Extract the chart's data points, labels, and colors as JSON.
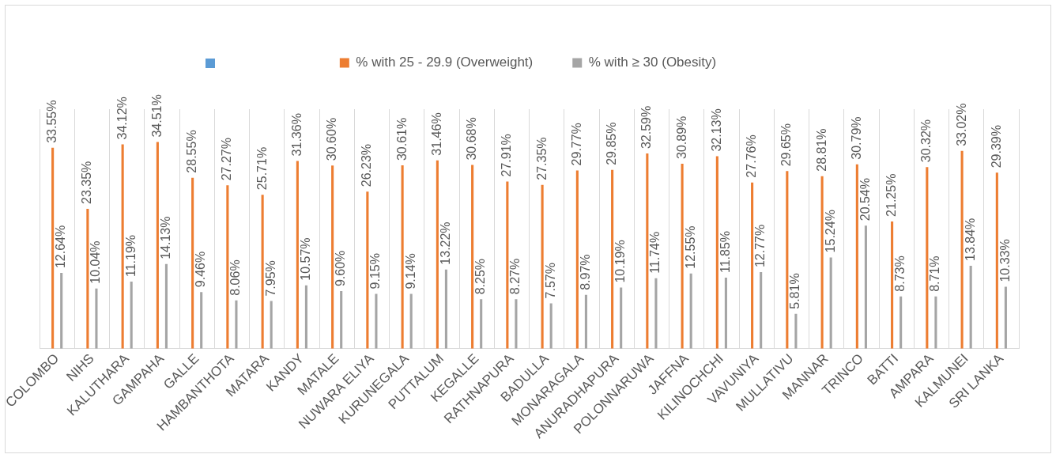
{
  "chart_data": {
    "type": "bar",
    "categories": [
      "COLOMBO",
      "NIHS",
      "KALUTHARA",
      "GAMPAHA",
      "GALLE",
      "HAMBANTHOTA",
      "MATARA",
      "KANDY",
      "MATALE",
      "NUWARA ELIYA",
      "KURUNEGALA",
      "PUTTALUM",
      "KEGALLE",
      "RATHNAPURA",
      "BADULLA",
      "MONARAGALA",
      "ANURADHAPURA",
      "POLONNARUWA",
      "JAFFNA",
      "KILINOCHCHI",
      "VAVUNIYA",
      "MULLATIVU",
      "MANNAR",
      "TRINCO",
      "BATTI",
      "AMPARA",
      "KALMUNEI",
      "SRI LANKA"
    ],
    "series": [
      {
        "name": "% with 25 - 29.9 (Overweight)",
        "color": "#ed7d31",
        "values": [
          33.55,
          23.35,
          34.12,
          34.51,
          28.55,
          27.27,
          25.71,
          31.36,
          30.6,
          26.23,
          30.61,
          31.46,
          30.68,
          27.91,
          27.35,
          29.77,
          29.85,
          32.59,
          30.89,
          32.13,
          27.76,
          29.65,
          28.81,
          30.79,
          21.25,
          30.32,
          33.02,
          29.39
        ],
        "value_labels": [
          "33.55%",
          "23.35%",
          "34.12%",
          "34.51%",
          "28.55%",
          "27.27%",
          "25.71%",
          "31.36%",
          "30.60%",
          "26.23%",
          "30.61%",
          "31.46%",
          "30.68%",
          "27.91%",
          "27.35%",
          "29.77%",
          "29.85%",
          "32.59%",
          "30.89%",
          "32.13%",
          "27.76%",
          "29.65%",
          "28.81%",
          "30.79%",
          "21.25%",
          "30.32%",
          "33.02%",
          "29.39%"
        ]
      },
      {
        "name": "% with ≥ 30 (Obesity)",
        "color": "#a5a5a5",
        "values": [
          12.64,
          10.04,
          11.19,
          14.13,
          9.46,
          8.06,
          7.95,
          10.57,
          9.6,
          9.15,
          9.14,
          13.22,
          8.25,
          8.27,
          7.57,
          8.97,
          10.19,
          11.74,
          12.55,
          11.85,
          12.77,
          5.81,
          15.24,
          20.54,
          8.73,
          8.71,
          13.84,
          10.33
        ],
        "value_labels": [
          "12.64%",
          "10.04%",
          "11.19%",
          "14.13%",
          "9.46%",
          "8.06%",
          "7.95%",
          "10.57%",
          "9.60%",
          "9.15%",
          "9.14%",
          "13.22%",
          "8.25%",
          "8.27%",
          "7.57%",
          "8.97%",
          "10.19%",
          "11.74%",
          "12.55%",
          "11.85%",
          "12.77%",
          "5.81%",
          "15.24%",
          "20.54%",
          "8.73%",
          "8.71%",
          "13.84%",
          "10.33%"
        ]
      }
    ],
    "ylim": [
      0,
      40
    ],
    "tick_labels": "x",
    "grid": "x",
    "legend": "top"
  }
}
